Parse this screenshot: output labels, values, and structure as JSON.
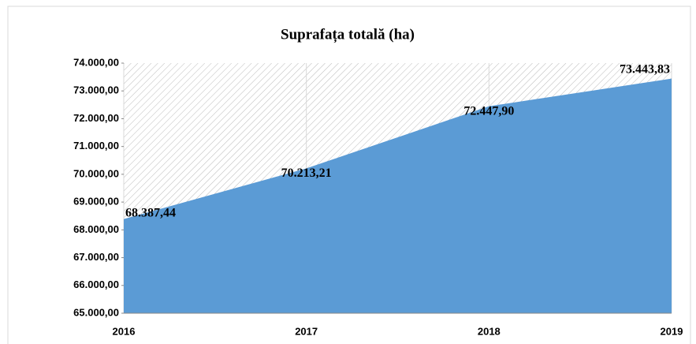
{
  "chart_data": {
    "type": "area",
    "title": "Suprafața totală (ha)",
    "categories": [
      "2016",
      "2017",
      "2018",
      "2019"
    ],
    "values": [
      68387.44,
      70213.21,
      72447.9,
      73443.83
    ],
    "value_labels": [
      "68.387,44",
      "70.213,21",
      "72.447,90",
      "73.443,83"
    ],
    "color": "#5b9bd5",
    "ylim": [
      65000,
      74000
    ],
    "yticks": [
      {
        "value": 65000,
        "label": "65.000,00"
      },
      {
        "value": 66000,
        "label": "66.000,00"
      },
      {
        "value": 67000,
        "label": "67.000,00"
      },
      {
        "value": 68000,
        "label": "68.000,00"
      },
      {
        "value": 69000,
        "label": "69.000,00"
      },
      {
        "value": 70000,
        "label": "70.000,00"
      },
      {
        "value": 71000,
        "label": "71.000,00"
      },
      {
        "value": 72000,
        "label": "72.000,00"
      },
      {
        "value": 73000,
        "label": "73.000,00"
      },
      {
        "value": 74000,
        "label": "74.000,00"
      }
    ],
    "grid": true
  }
}
